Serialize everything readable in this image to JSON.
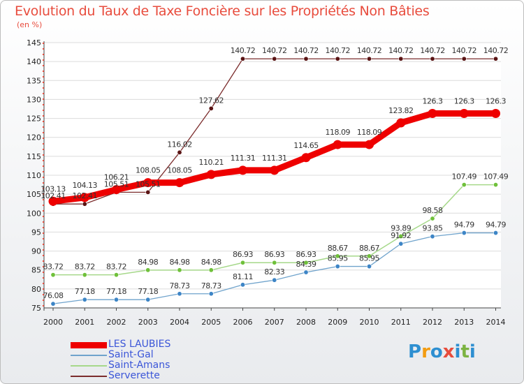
{
  "title": "Evolution du Taux de Taxe Foncière sur les Propriétés Non Bâties",
  "unit": "(en %)",
  "logo": {
    "text": "Proxiti",
    "letters": [
      {
        "ch": "P",
        "color": "#2e8fd1"
      },
      {
        "ch": "r",
        "color": "#f39c12"
      },
      {
        "ch": "o",
        "color": "#2e8fd1"
      },
      {
        "ch": "x",
        "color": "#e74c3c"
      },
      {
        "ch": "i",
        "color": "#2e8fd1"
      },
      {
        "ch": "t",
        "color": "#7cb342"
      },
      {
        "ch": "i",
        "color": "#2e8fd1"
      }
    ]
  },
  "chart_data": {
    "type": "line",
    "x": [
      2000,
      2001,
      2002,
      2003,
      2004,
      2005,
      2006,
      2007,
      2008,
      2009,
      2010,
      2011,
      2012,
      2013,
      2014
    ],
    "ylim": [
      75,
      145
    ],
    "yticks": [
      75,
      80,
      85,
      90,
      95,
      100,
      105,
      110,
      115,
      120,
      125,
      130,
      135,
      140,
      145
    ],
    "grid": "horizontal",
    "legend_position": "bottom-left",
    "series": [
      {
        "name": "Serverette",
        "color": "#7b2c2c",
        "dot": "#5a1414",
        "width": 1.3,
        "values": [
          102.41,
          102.41,
          105.51,
          105.51,
          116.02,
          127.62,
          140.72,
          140.72,
          140.72,
          140.72,
          140.72,
          140.72,
          140.72,
          140.72,
          140.72
        ],
        "labels": [
          "102.41",
          "102.41",
          "105.51",
          "105.51",
          "116.02",
          "127.62",
          "140.72",
          "140.72",
          "140.72",
          "140.72",
          "140.72",
          "140.72",
          "140.72",
          "140.72",
          "140.72"
        ]
      },
      {
        "name": "Saint-Amans",
        "color": "#a6d88a",
        "dot": "#6fc03a",
        "width": 1.5,
        "values": [
          83.72,
          83.72,
          83.72,
          84.98,
          84.98,
          84.98,
          86.93,
          86.93,
          86.93,
          88.67,
          88.67,
          93.89,
          98.58,
          107.49,
          107.49
        ],
        "labels": [
          "83.72",
          "83.72",
          "83.72",
          "84.98",
          "84.98",
          "84.98",
          "86.93",
          "86.93",
          "86.93",
          "88.67",
          "88.67",
          "93.89",
          "98.58",
          "107.49",
          "107.49"
        ]
      },
      {
        "name": "Saint-Gal",
        "color": "#6fa3cc",
        "dot": "#3d85c6",
        "width": 1.3,
        "values": [
          76.08,
          77.18,
          77.18,
          77.18,
          78.73,
          78.73,
          81.11,
          82.33,
          84.39,
          85.95,
          85.95,
          91.92,
          93.85,
          94.79,
          94.79
        ],
        "labels": [
          "76.08",
          "77.18",
          "77.18",
          "77.18",
          "78.73",
          "78.73",
          "81.11",
          "82.33",
          "84.39",
          "85.95",
          "85.95",
          "91.92",
          "93.85",
          "94.79",
          "94.79"
        ]
      },
      {
        "name": "LES LAUBIES",
        "color": "#ee0000",
        "dot": "#ee0000",
        "width": 9,
        "values": [
          103.13,
          104.13,
          106.21,
          108.05,
          108.05,
          110.21,
          111.31,
          111.31,
          114.65,
          118.09,
          118.09,
          123.82,
          126.3,
          126.3,
          126.3
        ],
        "labels": [
          "103.13",
          "104.13",
          "106.21",
          "108.05",
          "108.05",
          "110.21",
          "111.31",
          "111.31",
          "114.65",
          "118.09",
          "118.09",
          "123.82",
          "126.3",
          "126.3",
          "126.3"
        ]
      }
    ],
    "legend": [
      {
        "name": "LES LAUBIES",
        "color": "#ee0000",
        "thickness": 9
      },
      {
        "name": "Saint-Gal",
        "color": "#6fa3cc",
        "thickness": 2
      },
      {
        "name": "Saint-Amans",
        "color": "#a6d88a",
        "thickness": 2
      },
      {
        "name": "Serverette",
        "color": "#7b2c2c",
        "thickness": 2
      }
    ]
  }
}
